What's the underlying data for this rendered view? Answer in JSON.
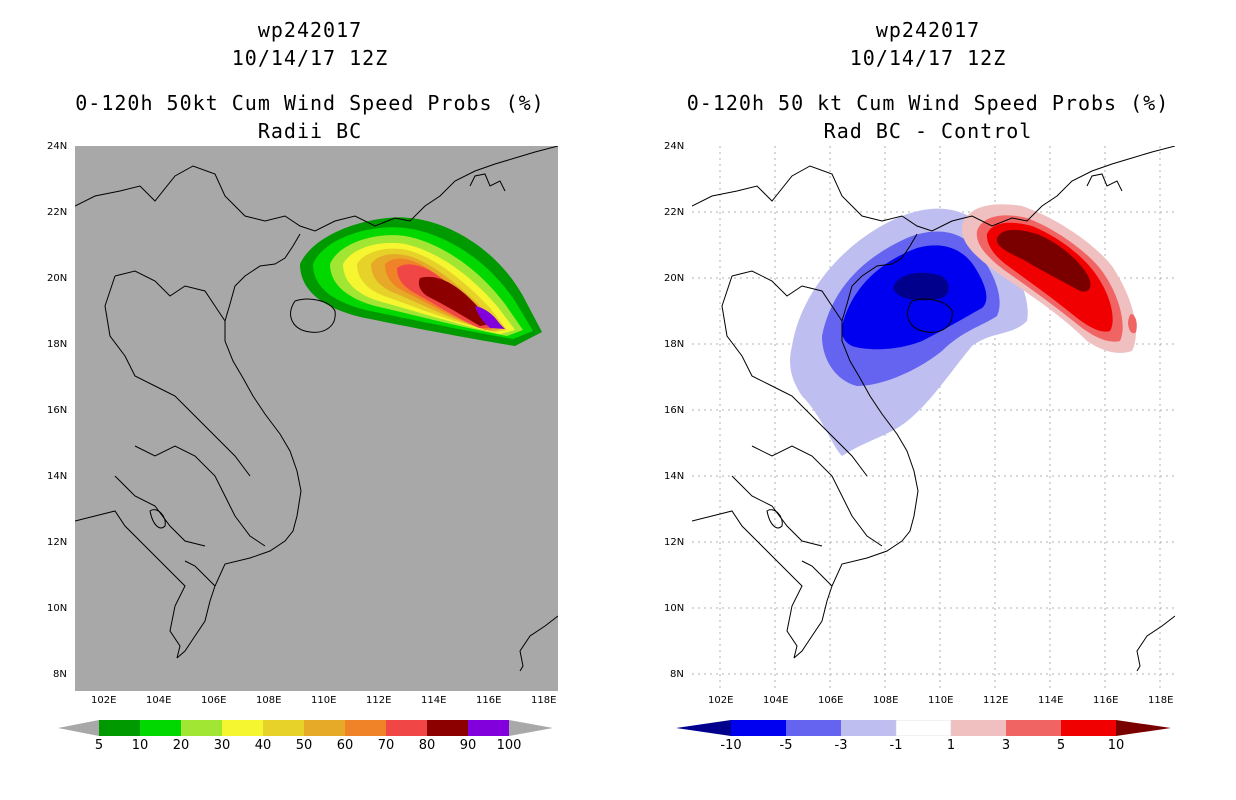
{
  "left": {
    "title_line1": "wp242017",
    "title_line2": "10/14/17 12Z",
    "title_line3": "0-120h 50kt Cum Wind Speed Probs (%)",
    "title_line4": "Radii BC",
    "colorbar": {
      "labels": [
        "5",
        "10",
        "20",
        "30",
        "40",
        "50",
        "60",
        "70",
        "80",
        "90",
        "100"
      ],
      "colors": [
        "#a8a8a8",
        "#009a00",
        "#00d800",
        "#a0e632",
        "#f6f630",
        "#e6d228",
        "#e6aa28",
        "#f08228",
        "#f04646",
        "#8c0000",
        "#8200dc",
        "#a8a8a8"
      ]
    }
  },
  "right": {
    "title_line1": "wp242017",
    "title_line2": "10/14/17 12Z",
    "title_line3": "0-120h 50 kt Cum Wind Speed Probs (%)",
    "title_line4": "Rad BC - Control",
    "colorbar": {
      "labels": [
        "-10",
        "-5",
        "-3",
        "-1",
        "1",
        "3",
        "5",
        "10"
      ],
      "colors": [
        "#00008c",
        "#0000f0",
        "#6464f0",
        "#bebef0",
        "#ffffff",
        "#f0c0c0",
        "#f06464",
        "#f00000",
        "#7a0000"
      ]
    }
  },
  "axes": {
    "lat_labels": [
      "24N",
      "22N",
      "20N",
      "18N",
      "16N",
      "14N",
      "12N",
      "10N",
      "8N"
    ],
    "lon_labels": [
      "102E",
      "104E",
      "106E",
      "108E",
      "110E",
      "112E",
      "114E",
      "116E",
      "118E"
    ],
    "lon_range": [
      101,
      118.5
    ],
    "lat_range": [
      7.5,
      24
    ]
  },
  "colors": {
    "land_bg": "#a8a8a8",
    "coast": "#000000"
  }
}
